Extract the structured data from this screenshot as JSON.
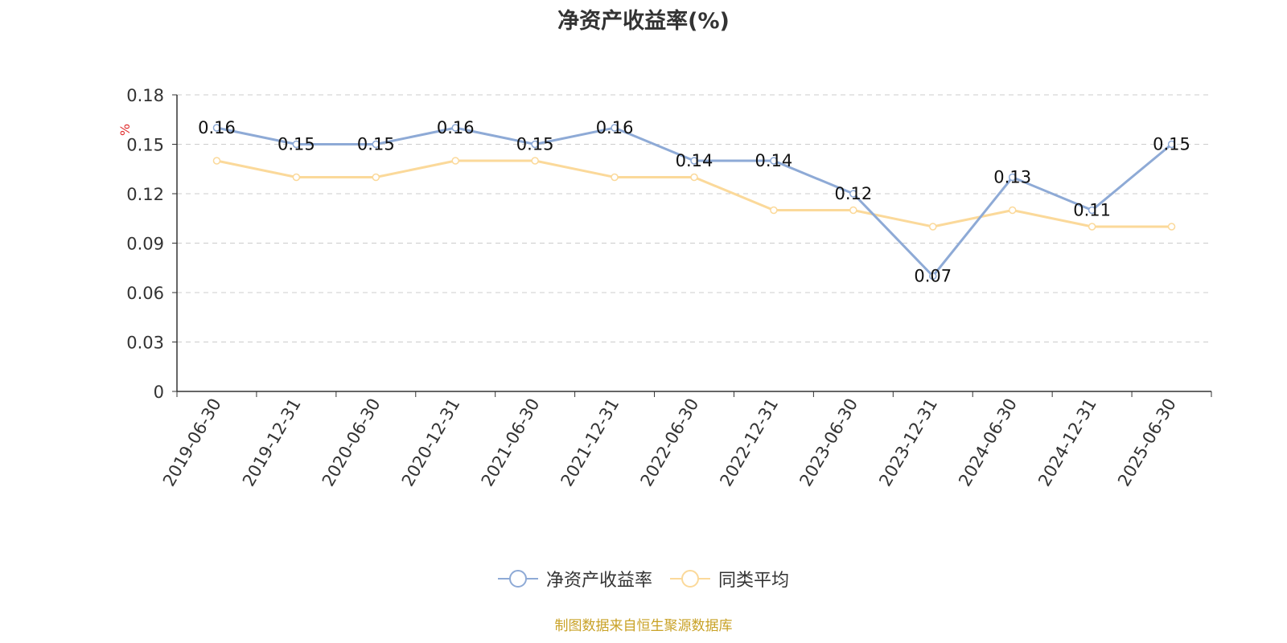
{
  "title": "净资产收益率(%)",
  "unit_label": "%",
  "credit": "制图数据来自恒生聚源数据库",
  "chart_data": {
    "type": "line",
    "title": "净资产收益率(%)",
    "xlabel": "",
    "ylabel": "%",
    "categories": [
      "2019-06-30",
      "2019-12-31",
      "2020-06-30",
      "2020-12-31",
      "2021-06-30",
      "2021-12-31",
      "2022-06-30",
      "2022-12-31",
      "2023-06-30",
      "2023-12-31",
      "2024-06-30",
      "2024-12-31",
      "2025-06-30"
    ],
    "ylim": [
      0,
      0.18
    ],
    "yticks": [
      "0",
      "0.03",
      "0.06",
      "0.09",
      "0.12",
      "0.15",
      "0.18"
    ],
    "grid": true,
    "legend_position": "bottom",
    "series": [
      {
        "name": "净资产收益率",
        "color": "#8eaad6",
        "show_labels": true,
        "values": [
          0.16,
          0.15,
          0.15,
          0.16,
          0.15,
          0.16,
          0.14,
          0.14,
          0.12,
          0.07,
          0.13,
          0.11,
          0.15
        ],
        "labels": [
          "0.16",
          "0.15",
          "0.15",
          "0.16",
          "0.15",
          "0.16",
          "0.14",
          "0.14",
          "0.12",
          "0.07",
          "0.13",
          "0.11",
          "0.15"
        ]
      },
      {
        "name": "同类平均",
        "color": "#fbd99a",
        "show_labels": false,
        "values": [
          0.14,
          0.13,
          0.13,
          0.14,
          0.14,
          0.13,
          0.13,
          0.11,
          0.11,
          0.1,
          0.11,
          0.1,
          0.1
        ]
      }
    ]
  }
}
